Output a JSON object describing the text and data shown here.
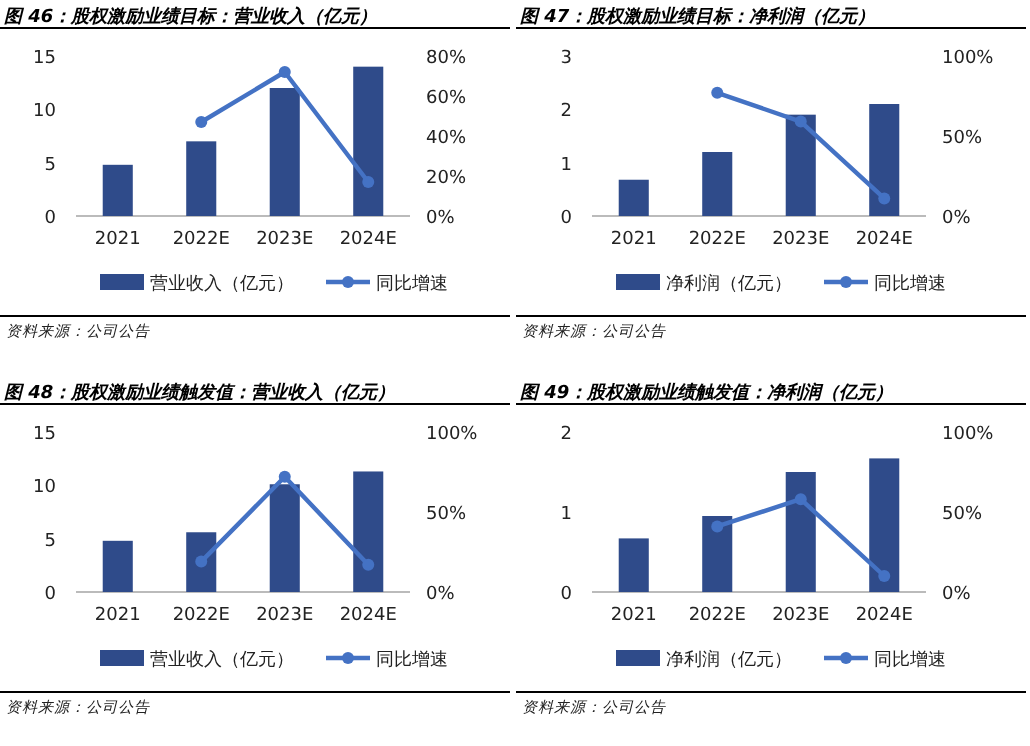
{
  "chart_data": [
    {
      "type": "bar",
      "title": "图 46：股权激励业绩目标：营业收入（亿元）",
      "categories": [
        "2021",
        "2022E",
        "2023E",
        "2024E"
      ],
      "ylim": [
        0,
        15
      ],
      "yticks": [
        0,
        5,
        10,
        15
      ],
      "y2lim": [
        0,
        80
      ],
      "y2ticks": [
        {
          "value": 0,
          "label": "0%"
        },
        {
          "value": 20,
          "label": "20%"
        },
        {
          "value": 40,
          "label": "40%"
        },
        {
          "value": 60,
          "label": "60%"
        },
        {
          "value": 80,
          "label": "80%"
        }
      ],
      "legend": "bottom",
      "marker": "circle",
      "annotations": [
        "资料来源：公司公告"
      ],
      "series": [
        {
          "name": "营业收入（亿元）",
          "color": "#2f4b8a",
          "values": [
            4.8,
            7.0,
            12.0,
            14.0
          ]
        },
        {
          "name": "同比增速",
          "type": "line",
          "axis": "y2",
          "color": "#4472c4",
          "values": [
            null,
            47,
            72,
            17
          ]
        }
      ]
    },
    {
      "type": "bar",
      "title": "图 47：股权激励业绩目标：净利润（亿元）",
      "categories": [
        "2021",
        "2022E",
        "2023E",
        "2024E"
      ],
      "ylim": [
        0,
        3
      ],
      "yticks": [
        0,
        1,
        2,
        3
      ],
      "y2lim": [
        0,
        100
      ],
      "y2ticks": [
        {
          "value": 0,
          "label": "0%"
        },
        {
          "value": 50,
          "label": "50%"
        },
        {
          "value": 100,
          "label": "100%"
        }
      ],
      "legend": "bottom",
      "marker": "circle",
      "annotations": [
        "资料来源：公司公告"
      ],
      "series": [
        {
          "name": "净利润（亿元）",
          "color": "#2f4b8a",
          "values": [
            0.68,
            1.2,
            1.9,
            2.1
          ]
        },
        {
          "name": "同比增速",
          "type": "line",
          "axis": "y2",
          "color": "#4472c4",
          "values": [
            null,
            77,
            59,
            11
          ]
        }
      ]
    },
    {
      "type": "bar",
      "title": "图 48：股权激励业绩触发值：营业收入（亿元）",
      "categories": [
        "2021",
        "2022E",
        "2023E",
        "2024E"
      ],
      "ylim": [
        0,
        15
      ],
      "yticks": [
        0,
        5,
        10,
        15
      ],
      "y2lim": [
        0,
        100
      ],
      "y2ticks": [
        {
          "value": 0,
          "label": "0%"
        },
        {
          "value": 50,
          "label": "50%"
        },
        {
          "value": 100,
          "label": "100%"
        }
      ],
      "legend": "bottom",
      "marker": "circle",
      "annotations": [
        "资料来源：公司公告"
      ],
      "series": [
        {
          "name": "营业收入（亿元）",
          "color": "#2f4b8a",
          "values": [
            4.8,
            5.6,
            10.1,
            11.3
          ]
        },
        {
          "name": "同比增速",
          "type": "line",
          "axis": "y2",
          "color": "#4472c4",
          "values": [
            null,
            19,
            72,
            17
          ]
        }
      ]
    },
    {
      "type": "bar",
      "title": "图 49：股权激励业绩触发值：净利润（亿元）",
      "categories": [
        "2021",
        "2022E",
        "2023E",
        "2024E"
      ],
      "ylim": [
        0,
        2
      ],
      "yticks": [
        0,
        1,
        2
      ],
      "y2lim": [
        0,
        100
      ],
      "y2ticks": [
        {
          "value": 0,
          "label": "0%"
        },
        {
          "value": 50,
          "label": "50%"
        },
        {
          "value": 100,
          "label": "100%"
        }
      ],
      "legend": "bottom",
      "marker": "circle",
      "annotations": [
        "资料来源：公司公告"
      ],
      "series": [
        {
          "name": "净利润（亿元）",
          "color": "#2f4b8a",
          "values": [
            0.67,
            0.95,
            1.5,
            1.67
          ]
        },
        {
          "name": "同比增速",
          "type": "line",
          "axis": "y2",
          "color": "#4472c4",
          "values": [
            null,
            41,
            58,
            10
          ]
        }
      ]
    }
  ]
}
